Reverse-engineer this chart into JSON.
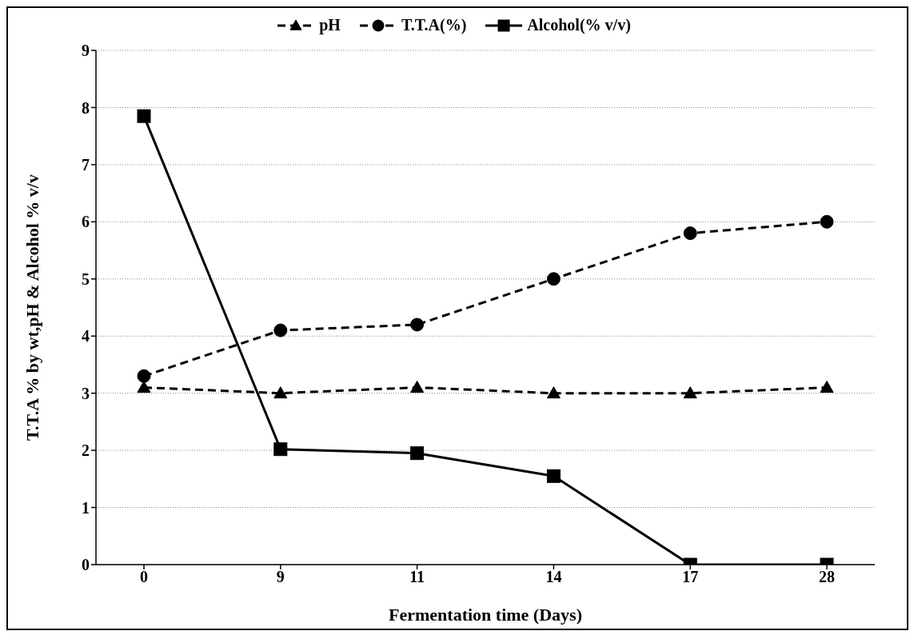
{
  "chart_data": {
    "type": "line",
    "xlabel": "Fermentation time (Days)",
    "ylabel": "T.T.A % by wt,pH & Alcohol % v/v",
    "categories": [
      "0",
      "9",
      "11",
      "14",
      "17",
      "28"
    ],
    "series": [
      {
        "name": "pH",
        "color": "#000000",
        "marker": "triangle",
        "line_style": "dashed",
        "values": [
          3.1,
          3.0,
          3.1,
          3.0,
          3.0,
          3.1
        ]
      },
      {
        "name": "T.T.A(%)",
        "color": "#000000",
        "marker": "circle",
        "line_style": "dashed",
        "values": [
          3.3,
          4.1,
          4.2,
          5.0,
          5.8,
          6.0
        ]
      },
      {
        "name": "Alcohol(% v/v)",
        "color": "#000000",
        "marker": "square",
        "line_style": "solid",
        "values": [
          7.85,
          2.02,
          1.95,
          1.55,
          0,
          0
        ]
      }
    ],
    "ylim": [
      0,
      9
    ],
    "yticks": [
      0,
      1,
      2,
      3,
      4,
      5,
      6,
      7,
      8,
      9
    ],
    "grid": "y",
    "legend": "top"
  }
}
